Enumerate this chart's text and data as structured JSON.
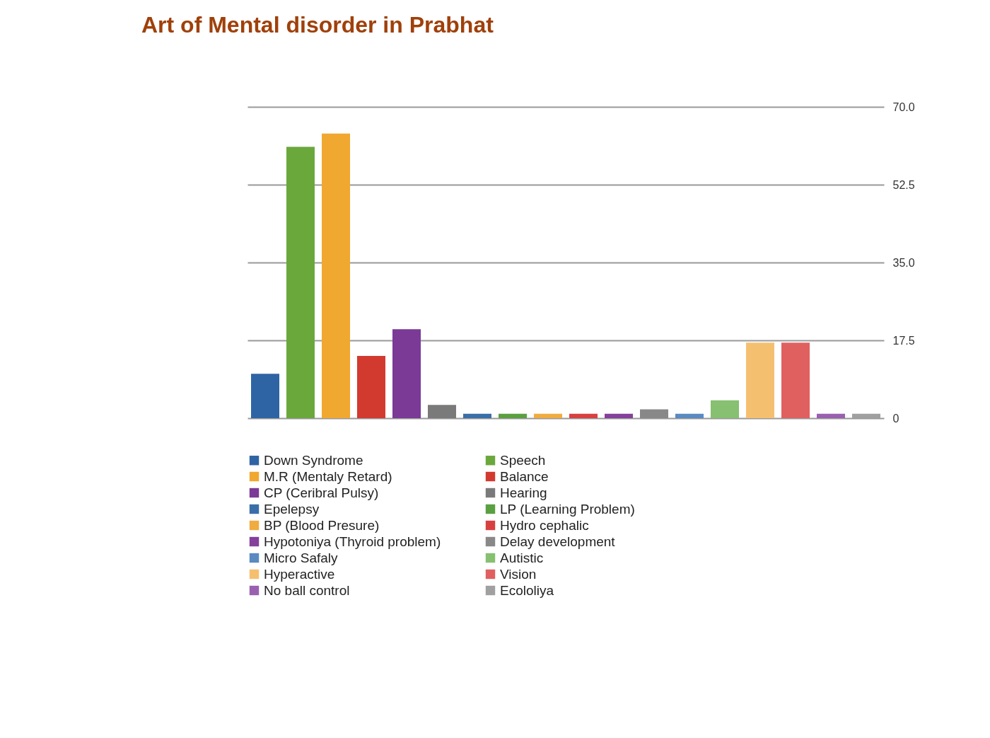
{
  "chart_data": {
    "type": "bar",
    "title": "Art of Mental disorder in Prabhat",
    "categories": [
      null,
      null,
      null,
      null,
      null,
      null,
      null,
      null,
      null,
      null,
      null,
      null,
      null,
      null,
      null,
      null,
      null,
      null
    ],
    "series": [
      {
        "name": "Down Syndrome",
        "color": "#2e64a4",
        "values": [
          10,
          null,
          null,
          null,
          null,
          null,
          null,
          null,
          null,
          null,
          null,
          null,
          null,
          null,
          null,
          null,
          null,
          null
        ]
      },
      {
        "name": "Speech",
        "color": "#6aa83c",
        "values": [
          null,
          61,
          null,
          null,
          null,
          null,
          null,
          null,
          null,
          null,
          null,
          null,
          null,
          null,
          null,
          null,
          null,
          null
        ]
      },
      {
        "name": "M.R (Mentaly Retard)",
        "color": "#f0a830",
        "values": [
          null,
          null,
          64,
          null,
          null,
          null,
          null,
          null,
          null,
          null,
          null,
          null,
          null,
          null,
          null,
          null,
          null,
          null
        ]
      },
      {
        "name": "Balance",
        "color": "#d23a30",
        "values": [
          null,
          null,
          null,
          14,
          null,
          null,
          null,
          null,
          null,
          null,
          null,
          null,
          null,
          null,
          null,
          null,
          null,
          null
        ]
      },
      {
        "name": "CP (Ceribral Pulsy)",
        "color": "#7a3a96",
        "values": [
          null,
          null,
          null,
          null,
          20,
          null,
          null,
          null,
          null,
          null,
          null,
          null,
          null,
          null,
          null,
          null,
          null,
          null
        ]
      },
      {
        "name": "Hearing",
        "color": "#7a7a7a",
        "values": [
          null,
          null,
          null,
          null,
          null,
          3,
          null,
          null,
          null,
          null,
          null,
          null,
          null,
          null,
          null,
          null,
          null,
          null
        ]
      },
      {
        "name": "Epelepsy",
        "color": "#3a6ea8",
        "values": [
          null,
          null,
          null,
          null,
          null,
          null,
          1,
          null,
          null,
          null,
          null,
          null,
          null,
          null,
          null,
          null,
          null,
          null
        ]
      },
      {
        "name": "LP (Learning Problem)",
        "color": "#5aa040",
        "values": [
          null,
          null,
          null,
          null,
          null,
          null,
          null,
          1,
          null,
          null,
          null,
          null,
          null,
          null,
          null,
          null,
          null,
          null
        ]
      },
      {
        "name": "BP (Blood Presure)",
        "color": "#f0ac40",
        "values": [
          null,
          null,
          null,
          null,
          null,
          null,
          null,
          null,
          1,
          null,
          null,
          null,
          null,
          null,
          null,
          null,
          null,
          null
        ]
      },
      {
        "name": "Hydro cephalic",
        "color": "#d84040",
        "values": [
          null,
          null,
          null,
          null,
          null,
          null,
          null,
          null,
          null,
          1,
          null,
          null,
          null,
          null,
          null,
          null,
          null,
          null
        ]
      },
      {
        "name": "Hypotoniya (Thyroid problem)",
        "color": "#84409a",
        "values": [
          null,
          null,
          null,
          null,
          null,
          null,
          null,
          null,
          null,
          null,
          1,
          null,
          null,
          null,
          null,
          null,
          null,
          null
        ]
      },
      {
        "name": "Delay development",
        "color": "#888888",
        "values": [
          null,
          null,
          null,
          null,
          null,
          null,
          null,
          null,
          null,
          null,
          null,
          2,
          null,
          null,
          null,
          null,
          null,
          null
        ]
      },
      {
        "name": "Micro Safaly",
        "color": "#5a8ac0",
        "values": [
          null,
          null,
          null,
          null,
          null,
          null,
          null,
          null,
          null,
          null,
          null,
          null,
          1,
          null,
          null,
          null,
          null,
          null
        ]
      },
      {
        "name": "Autistic",
        "color": "#86c070",
        "values": [
          null,
          null,
          null,
          null,
          null,
          null,
          null,
          null,
          null,
          null,
          null,
          null,
          null,
          4,
          null,
          null,
          null,
          null
        ]
      },
      {
        "name": "Hyperactive",
        "color": "#f4c070",
        "values": [
          null,
          null,
          null,
          null,
          null,
          null,
          null,
          null,
          null,
          null,
          null,
          null,
          null,
          null,
          17,
          null,
          null,
          null
        ]
      },
      {
        "name": "Vision",
        "color": "#e06060",
        "values": [
          null,
          null,
          null,
          null,
          null,
          null,
          null,
          null,
          null,
          null,
          null,
          null,
          null,
          null,
          null,
          17,
          null,
          null
        ]
      },
      {
        "name": "No ball control",
        "color": "#9a60b0",
        "values": [
          null,
          null,
          null,
          null,
          null,
          null,
          null,
          null,
          null,
          null,
          null,
          null,
          null,
          null,
          null,
          null,
          1,
          null
        ]
      },
      {
        "name": "Ecololiya",
        "color": "#a0a0a0",
        "values": [
          null,
          null,
          null,
          null,
          null,
          null,
          null,
          null,
          null,
          null,
          null,
          null,
          null,
          null,
          null,
          null,
          null,
          1
        ]
      }
    ],
    "ylim": [
      0,
      70
    ],
    "yticks": [
      {
        "value": 0,
        "label": "0"
      },
      17.5,
      {
        "value": 35,
        "label": "35.0"
      },
      52.5,
      {
        "value": 70,
        "label": "70.0"
      }
    ],
    "grid": "y",
    "legend": "bottom",
    "tick_labels": "y"
  }
}
